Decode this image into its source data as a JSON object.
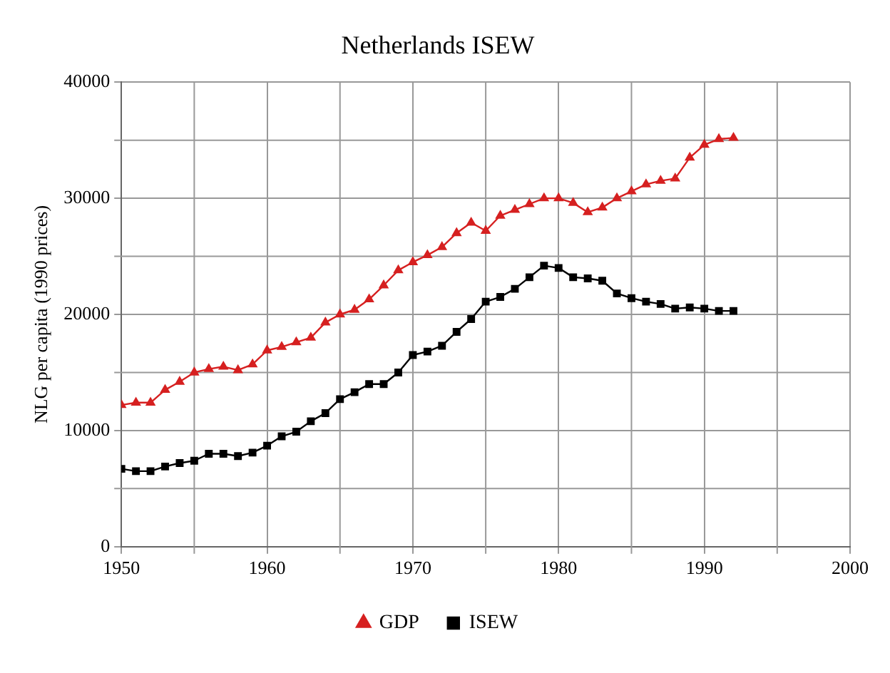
{
  "chart_data": {
    "type": "line",
    "title": "Netherlands ISEW",
    "ylabel": "NLG per capita (1990 prices)",
    "x": [
      1950,
      1951,
      1952,
      1953,
      1954,
      1955,
      1956,
      1957,
      1958,
      1959,
      1960,
      1961,
      1962,
      1963,
      1964,
      1965,
      1966,
      1967,
      1968,
      1969,
      1970,
      1971,
      1972,
      1973,
      1974,
      1975,
      1976,
      1977,
      1978,
      1979,
      1980,
      1981,
      1982,
      1983,
      1984,
      1985,
      1986,
      1987,
      1988,
      1989,
      1990,
      1991,
      1992
    ],
    "series": [
      {
        "name": "GDP",
        "color": "#d62020",
        "marker": "triangle",
        "values": [
          12200,
          12400,
          12400,
          13500,
          14200,
          15000,
          15300,
          15500,
          15200,
          15700,
          16900,
          17200,
          17600,
          18000,
          19300,
          20000,
          20400,
          21300,
          22500,
          23800,
          24500,
          25100,
          25800,
          27000,
          27900,
          27200,
          28500,
          29000,
          29500,
          30000,
          30000,
          29600,
          28800,
          29200,
          30000,
          30600,
          31200,
          31500,
          31700,
          33500,
          34600,
          35100,
          35200
        ]
      },
      {
        "name": "ISEW",
        "color": "#000000",
        "marker": "square",
        "values": [
          6700,
          6500,
          6500,
          6900,
          7200,
          7400,
          8000,
          8000,
          7800,
          8100,
          8700,
          9500,
          9900,
          10800,
          11500,
          12700,
          13300,
          14000,
          14000,
          15000,
          16500,
          16800,
          17300,
          18500,
          19600,
          21100,
          21500,
          22200,
          23200,
          24200,
          24000,
          23200,
          23100,
          22900,
          21800,
          21400,
          21100,
          20900,
          20500,
          20600,
          20500,
          20300,
          20300
        ]
      }
    ],
    "xlim": [
      1950,
      2000
    ],
    "xticks": [
      1950,
      {
        "value": 1955,
        "label": null
      },
      1960,
      {
        "value": 1965,
        "label": null
      },
      1970,
      {
        "value": 1975,
        "label": null
      },
      1980,
      {
        "value": 1985,
        "label": null
      },
      1990,
      {
        "value": 1995,
        "label": null
      },
      2000
    ],
    "ylim": [
      0,
      40000
    ],
    "yticks": [
      0,
      {
        "value": 5000,
        "label": null
      },
      10000,
      {
        "value": 15000,
        "label": null
      },
      20000,
      {
        "value": 25000,
        "label": null
      },
      30000,
      {
        "value": 35000,
        "label": null
      },
      40000
    ],
    "grid": true,
    "legend": "bottom"
  }
}
